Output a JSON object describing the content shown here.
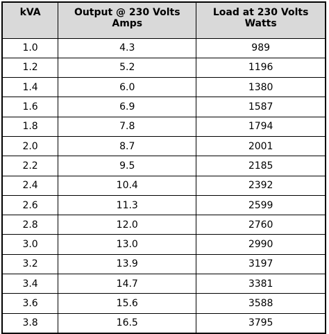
{
  "table": {
    "header": [
      "kVA",
      "Output @ 230 Volts\nAmps",
      "Load at 230 Volts\nWatts"
    ],
    "rows": [
      [
        "1.0",
        "4.3",
        "989"
      ],
      [
        "1.2",
        "5.2",
        "1196"
      ],
      [
        "1.4",
        "6.0",
        "1380"
      ],
      [
        "1.6",
        "6.9",
        "1587"
      ],
      [
        "1.8",
        "7.8",
        "1794"
      ],
      [
        "2.0",
        "8.7",
        "2001"
      ],
      [
        "2.2",
        "9.5",
        "2185"
      ],
      [
        "2.4",
        "10.4",
        "2392"
      ],
      [
        "2.6",
        "11.3",
        "2599"
      ],
      [
        "2.8",
        "12.0",
        "2760"
      ],
      [
        "3.0",
        "13.0",
        "2990"
      ],
      [
        "3.2",
        "13.9",
        "3197"
      ],
      [
        "3.4",
        "14.7",
        "3381"
      ],
      [
        "3.6",
        "15.6",
        "3588"
      ],
      [
        "3.8",
        "16.5",
        "3795"
      ]
    ]
  }
}
